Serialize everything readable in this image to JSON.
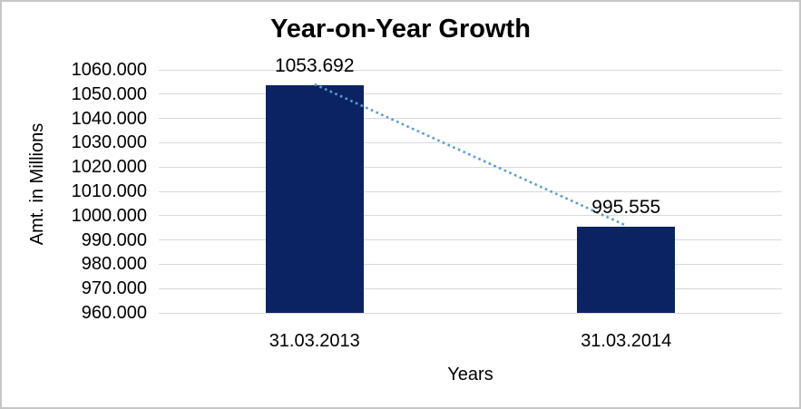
{
  "chart_data": {
    "type": "bar",
    "title": "Year-on-Year Growth",
    "xlabel": "Years",
    "ylabel": "Amt. in Millions",
    "categories": [
      "31.03.2013",
      "31.03.2014"
    ],
    "series": [
      {
        "name": "Amt. in Millions",
        "values": [
          1053.692,
          995.555
        ]
      }
    ],
    "data_labels": [
      "1053.692",
      "995.555"
    ],
    "ylim": [
      960,
      1060
    ],
    "ytick_step": 10,
    "ytick_labels": [
      "1060.000",
      "1050.000",
      "1040.000",
      "1030.000",
      "1020.000",
      "1010.000",
      "1000.000",
      "990.000",
      "980.000",
      "970.000",
      "960.000"
    ],
    "grid": true,
    "legend": false,
    "trendline": {
      "type": "linear",
      "style": "dotted",
      "color": "#5b9bd5"
    },
    "colors": {
      "bar": "#0b2363",
      "gridline": "#d9d9d9",
      "text": "#000000",
      "background": "#ffffff",
      "border": "#c6c6c6"
    }
  }
}
